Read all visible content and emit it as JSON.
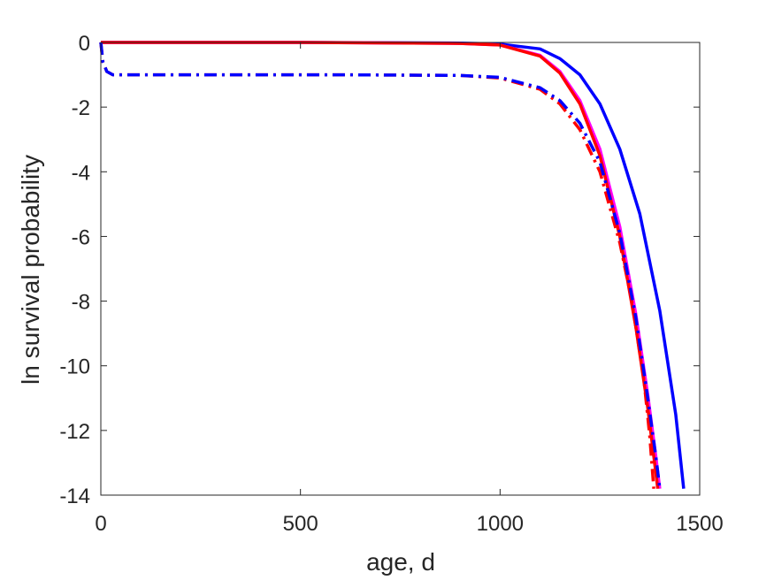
{
  "chart_data": {
    "type": "line",
    "xlabel": "age, d",
    "ylabel": "ln survival probability",
    "xlim": [
      0,
      1500
    ],
    "ylim": [
      -14,
      0
    ],
    "xticks": [
      0,
      500,
      1000,
      1500
    ],
    "xtick_labels": [
      "0",
      "500",
      "1000",
      "1500"
    ],
    "yticks": [
      0,
      -2,
      -4,
      -6,
      -8,
      -10,
      -12,
      -14
    ],
    "ytick_labels": [
      "0",
      "-2",
      "-4",
      "-6",
      "-8",
      "-10",
      "-12",
      "-14"
    ],
    "grid": false,
    "series": [
      {
        "color": "#0000ff",
        "style": "solid",
        "x": [
          0,
          500,
          900,
          1000,
          1100,
          1150,
          1200,
          1250,
          1300,
          1350,
          1400,
          1440,
          1460
        ],
        "y": [
          0,
          0,
          -0.02,
          -0.05,
          -0.2,
          -0.5,
          -1.0,
          -1.9,
          -3.3,
          -5.3,
          -8.3,
          -11.5,
          -13.8
        ]
      },
      {
        "color": "#ff00ff",
        "style": "solid",
        "x": [
          0,
          500,
          900,
          1000,
          1100,
          1150,
          1200,
          1250,
          1300,
          1340,
          1370,
          1390,
          1400
        ],
        "y": [
          0,
          0,
          -0.03,
          -0.08,
          -0.4,
          -0.9,
          -1.8,
          -3.3,
          -5.7,
          -8.4,
          -10.9,
          -12.8,
          -13.8
        ]
      },
      {
        "color": "#ff0000",
        "style": "solid",
        "x": [
          0,
          500,
          900,
          1000,
          1100,
          1150,
          1200,
          1250,
          1300,
          1340,
          1370,
          1385,
          1395
        ],
        "y": [
          0,
          0,
          -0.03,
          -0.08,
          -0.42,
          -0.95,
          -1.9,
          -3.5,
          -6.0,
          -8.8,
          -11.3,
          -12.8,
          -13.8
        ]
      },
      {
        "color": "#ff0000",
        "style": "dashdot",
        "x": [
          0,
          5,
          15,
          30,
          200,
          600,
          900,
          1000,
          1100,
          1150,
          1200,
          1250,
          1300,
          1330,
          1360,
          1375,
          1385
        ],
        "y": [
          0,
          -0.6,
          -0.9,
          -1.0,
          -1.0,
          -1.0,
          -1.02,
          -1.1,
          -1.45,
          -1.9,
          -2.7,
          -4.0,
          -6.2,
          -8.0,
          -10.4,
          -12.2,
          -13.8
        ]
      },
      {
        "color": "#0000ff",
        "style": "dashdot",
        "x": [
          0,
          5,
          15,
          30,
          200,
          600,
          900,
          1000,
          1100,
          1150,
          1200,
          1250,
          1300,
          1340,
          1370,
          1390,
          1400
        ],
        "y": [
          0,
          -0.6,
          -0.9,
          -1.0,
          -1.0,
          -1.0,
          -1.02,
          -1.08,
          -1.4,
          -1.8,
          -2.5,
          -3.7,
          -5.9,
          -8.5,
          -11.0,
          -12.8,
          -13.8
        ]
      }
    ]
  }
}
